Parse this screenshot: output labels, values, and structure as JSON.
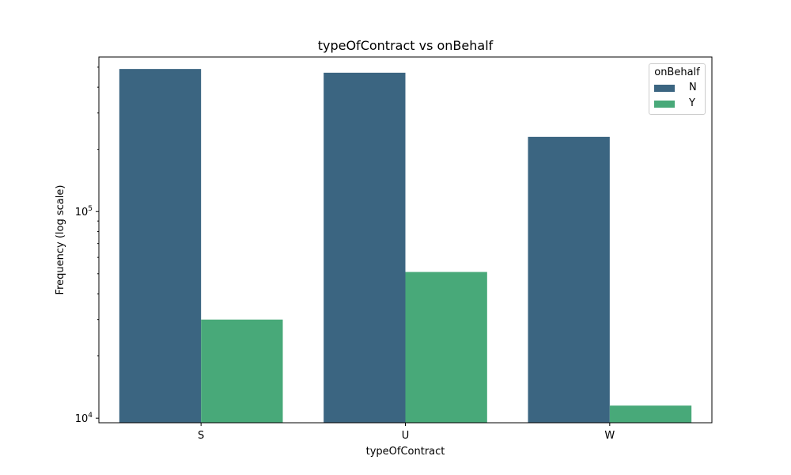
{
  "chart_data": {
    "type": "bar",
    "title": "typeOfContract vs onBehalf",
    "xlabel": "typeOfContract",
    "ylabel": "Frequency (log scale)",
    "yscale": "log",
    "ylim": [
      9500,
      560000
    ],
    "yticks": [
      {
        "value": 10000,
        "base": "10",
        "exp": "4"
      },
      {
        "value": 100000,
        "base": "10",
        "exp": "5"
      }
    ],
    "categories": [
      "S",
      "U",
      "W"
    ],
    "legend_title": "onBehalf",
    "legend_position": "top-right",
    "series": [
      {
        "name": "N",
        "color": "#3b6581",
        "values": [
          490000,
          470000,
          230000
        ]
      },
      {
        "name": "Y",
        "color": "#48a979",
        "values": [
          30000,
          51000,
          11500
        ]
      }
    ]
  }
}
